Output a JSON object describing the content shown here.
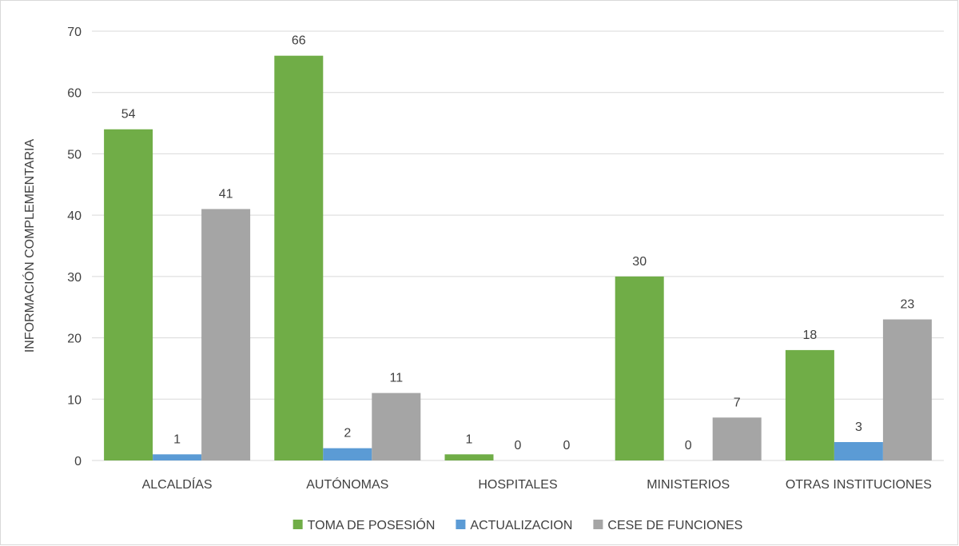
{
  "chart_data": {
    "type": "bar",
    "title": "",
    "xlabel": "",
    "ylabel": "INFORMACIÓN COMPLEMENTARIA",
    "ylim": [
      0,
      70
    ],
    "yticks": [
      0,
      10,
      20,
      30,
      40,
      50,
      60,
      70
    ],
    "grid": true,
    "legend_position": "bottom",
    "categories": [
      "ALCALDÍAS",
      "AUTÓNOMAS",
      "HOSPITALES",
      "MINISTERIOS",
      "OTRAS INSTITUCIONES"
    ],
    "series": [
      {
        "name": "TOMA DE POSESIÓN",
        "color": "#70ad47",
        "values": [
          54,
          66,
          1,
          30,
          18
        ]
      },
      {
        "name": "ACTUALIZACION",
        "color": "#5b9bd5",
        "values": [
          1,
          2,
          0,
          0,
          3
        ]
      },
      {
        "name": "CESE DE FUNCIONES",
        "color": "#a5a5a5",
        "values": [
          41,
          11,
          0,
          7,
          23
        ]
      }
    ],
    "gridline_color": "#d9d9d9",
    "text_color": "#404040"
  }
}
